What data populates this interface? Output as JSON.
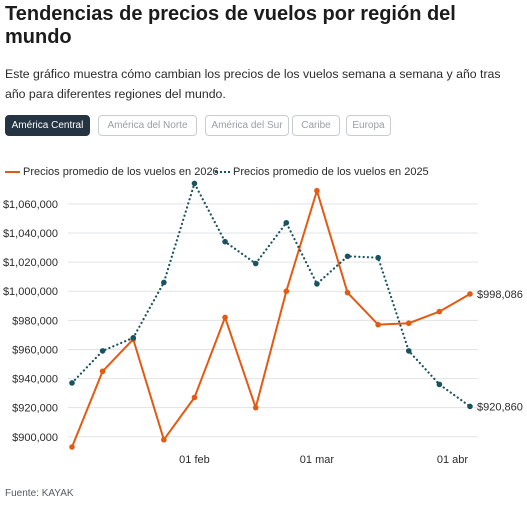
{
  "title": "Tendencias de precios de vuelos por región del mundo",
  "subtitle": "Este gráfico muestra cómo cambian los precios de los vuelos semana a semana y año tras año para diferentes regiones del mundo.",
  "tabs": [
    {
      "label": "América Central",
      "active": true
    },
    {
      "label": "América del Norte",
      "active": false
    },
    {
      "label": "América del Sur",
      "active": false
    },
    {
      "label": "Caribe",
      "active": false
    },
    {
      "label": "Europa",
      "active": false
    }
  ],
  "source": "Fuente: KAYAK",
  "colors": {
    "series_2026": "#e35a13",
    "series_2025": "#19535f",
    "grid": "#e1e3e5",
    "text": "#2b2b2b"
  },
  "chart_data": {
    "type": "line",
    "x_tick_labels": [
      "01 feb",
      "01 mar",
      "01 abr"
    ],
    "x_ticks": [
      "2026-02-01",
      "2026-03-01",
      "2026-04-01"
    ],
    "x": [
      "2026-01-04",
      "2026-01-11",
      "2026-01-18",
      "2026-01-25",
      "2026-02-01",
      "2026-02-08",
      "2026-02-15",
      "2026-02-22",
      "2026-03-01",
      "2026-03-08",
      "2026-03-15",
      "2026-03-22",
      "2026-03-29",
      "2026-04-05"
    ],
    "y_ticks": [
      900000,
      920000,
      940000,
      960000,
      980000,
      1000000,
      1020000,
      1040000,
      1060000
    ],
    "y_tick_labels": [
      "$900,000",
      "$920,000",
      "$940,000",
      "$960,000",
      "$980,000",
      "$1,000,000",
      "$1,020,000",
      "$1,040,000",
      "$1,060,000"
    ],
    "ylim": [
      893000,
      1075000
    ],
    "grid": true,
    "legend_position": "top-left",
    "series": [
      {
        "name": "Precios promedio de los vuelos en 2026",
        "style": "solid",
        "values": [
          893000,
          945000,
          967000,
          898000,
          927000,
          982000,
          920000,
          1000000,
          1069000,
          999000,
          977000,
          978000,
          986000,
          998086
        ],
        "end_label": "$998,086"
      },
      {
        "name": "Precios promedio de los vuelos en 2025",
        "style": "dotted",
        "values": [
          937000,
          959000,
          968000,
          1006000,
          1074000,
          1034000,
          1019000,
          1047000,
          1005000,
          1024000,
          1023000,
          959000,
          936000,
          920860
        ],
        "end_label": "$920,860"
      }
    ]
  }
}
